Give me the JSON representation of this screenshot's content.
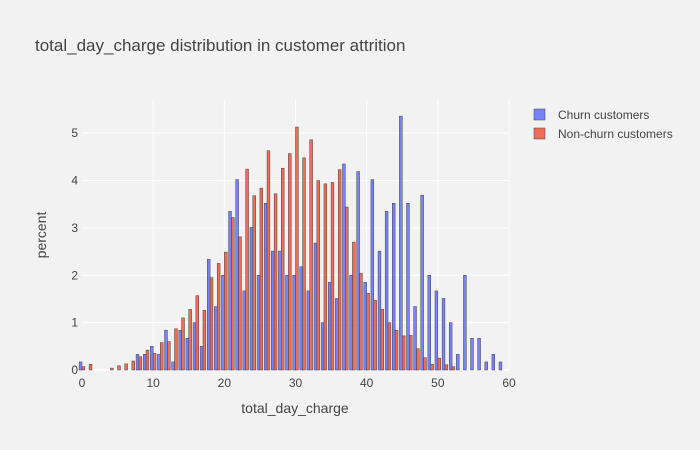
{
  "chart_data": {
    "type": "bar",
    "title": "total_day_charge distribution in customer attrition",
    "xlabel": "total_day_charge",
    "ylabel": "percent",
    "xlim": [
      0,
      60
    ],
    "ylim": [
      0,
      5.7
    ],
    "bin_width": 0.5,
    "x_ticks": [
      0,
      10,
      20,
      30,
      40,
      50,
      60
    ],
    "y_ticks": [
      0,
      1,
      2,
      3,
      4,
      5
    ],
    "grid": true,
    "legend_position": "top-right",
    "series": [
      {
        "name": "Churn customers",
        "color": "#636efa",
        "x": [
          0,
          8,
          9,
          10,
          11,
          12,
          13,
          14,
          15,
          16,
          17,
          18,
          19,
          20,
          21,
          22,
          23,
          24,
          25,
          26,
          27,
          28,
          29,
          30,
          31,
          32,
          33,
          34,
          35,
          36,
          37,
          38,
          39,
          40,
          41,
          42,
          43,
          44,
          45,
          46,
          47,
          48,
          49,
          50,
          51,
          52,
          53,
          54,
          55,
          56,
          57,
          58,
          59
        ],
        "values": [
          0.17,
          0.33,
          0.33,
          0.5,
          0.33,
          0.84,
          0.17,
          0.84,
          0.67,
          1.0,
          0.5,
          2.34,
          1.34,
          2.0,
          3.35,
          4.02,
          1.67,
          3.01,
          2.0,
          3.52,
          2.51,
          2.51,
          2.0,
          2.0,
          2.18,
          1.67,
          2.68,
          1.0,
          1.85,
          1.51,
          4.35,
          2.0,
          4.19,
          1.85,
          4.02,
          2.51,
          3.35,
          3.52,
          5.36,
          3.52,
          1.34,
          3.69,
          2.0,
          1.67,
          1.51,
          1.0,
          0.33,
          2.0,
          0.67,
          0.67,
          0.17,
          0.33,
          0.17
        ]
      },
      {
        "name": "Non-churn customers",
        "color": "#ef553b",
        "x": [
          0,
          1,
          4,
          5,
          6,
          7,
          8,
          9,
          10,
          11,
          12,
          13,
          14,
          15,
          16,
          17,
          18,
          19,
          20,
          21,
          22,
          23,
          24,
          25,
          26,
          27,
          28,
          29,
          30,
          31,
          32,
          33,
          34,
          35,
          36,
          37,
          38,
          39,
          40,
          41,
          42,
          43,
          44,
          45,
          46,
          47,
          48,
          49,
          50,
          51,
          52
        ],
        "values": [
          0.07,
          0.12,
          0.04,
          0.09,
          0.13,
          0.19,
          0.28,
          0.42,
          0.35,
          0.58,
          0.6,
          0.87,
          1.1,
          1.28,
          1.57,
          1.26,
          1.95,
          2.25,
          2.49,
          3.22,
          2.81,
          4.24,
          3.68,
          3.84,
          4.63,
          3.72,
          4.26,
          4.57,
          5.13,
          4.48,
          4.86,
          4.0,
          3.93,
          3.96,
          4.23,
          3.44,
          2.7,
          2.04,
          1.62,
          1.47,
          1.28,
          1.0,
          0.84,
          0.72,
          0.73,
          0.45,
          0.26,
          0.12,
          0.25,
          0.11,
          0.07
        ]
      }
    ]
  }
}
